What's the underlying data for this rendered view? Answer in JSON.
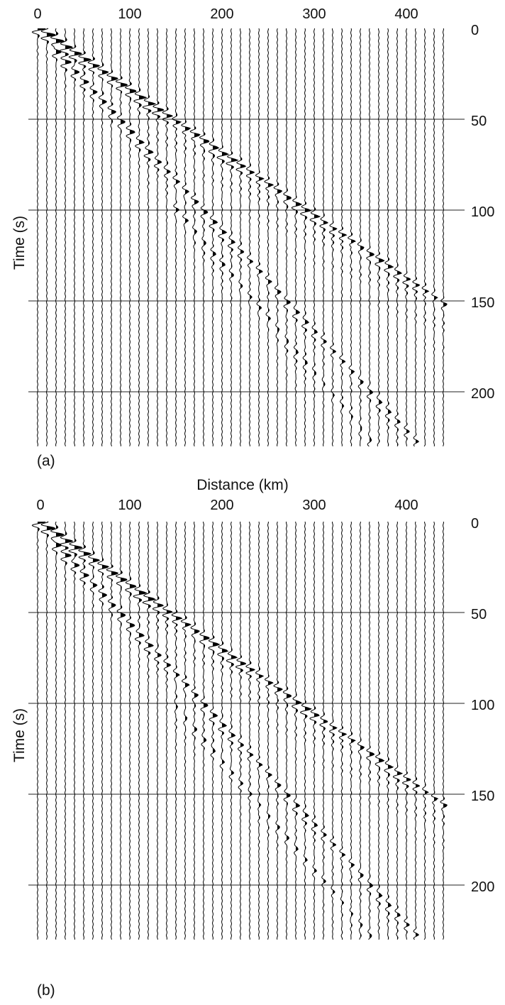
{
  "chart_data": [
    {
      "type": "seismogram",
      "panel_label": "(a)",
      "xlabel": "",
      "ylabel": "Time (s)",
      "xlim": [
        0,
        450
      ],
      "ylim": [
        0,
        230
      ],
      "x_ticks": [
        "0",
        "100",
        "200",
        "300",
        "400"
      ],
      "y_ticks": [
        "0",
        "50",
        "100",
        "150",
        "200"
      ],
      "x_tick_values": [
        0,
        100,
        200,
        300,
        400
      ],
      "y_tick_values": [
        0,
        50,
        100,
        150,
        200
      ],
      "gridlines_y": [
        50,
        100,
        150,
        200
      ],
      "trace_spacing_km": 10,
      "trace_count": 45,
      "phases": [
        {
          "t0": 0,
          "slowness_s_per_km": 0.345,
          "amp": 1.0
        },
        {
          "t0": 2,
          "slowness_s_per_km": 0.55,
          "amp": 0.7,
          "start_km": 20
        },
        {
          "t0": 10,
          "slowness_s_per_km": 0.6,
          "amp": 0.45,
          "start_km": 150
        }
      ]
    },
    {
      "type": "seismogram",
      "panel_label": "(b)",
      "xlabel": "Distance (km)",
      "ylabel": "Time (s)",
      "xlim": [
        0,
        450
      ],
      "ylim": [
        0,
        230
      ],
      "x_ticks": [
        "0",
        "100",
        "200",
        "300",
        "400"
      ],
      "y_ticks": [
        "0",
        "50",
        "100",
        "150",
        "200"
      ],
      "x_tick_values": [
        0,
        100,
        200,
        300,
        400
      ],
      "y_tick_values": [
        0,
        50,
        100,
        150,
        200
      ],
      "gridlines_y": [
        50,
        100,
        150,
        200
      ],
      "trace_spacing_km": 10,
      "trace_count": 45,
      "phases": [
        {
          "t0": 0,
          "slowness_s_per_km": 0.355,
          "amp": 1.0
        },
        {
          "t0": 2,
          "slowness_s_per_km": 0.55,
          "amp": 0.7,
          "start_km": 20
        },
        {
          "t0": 12,
          "slowness_s_per_km": 0.6,
          "amp": 0.4,
          "start_km": 150
        }
      ]
    }
  ]
}
